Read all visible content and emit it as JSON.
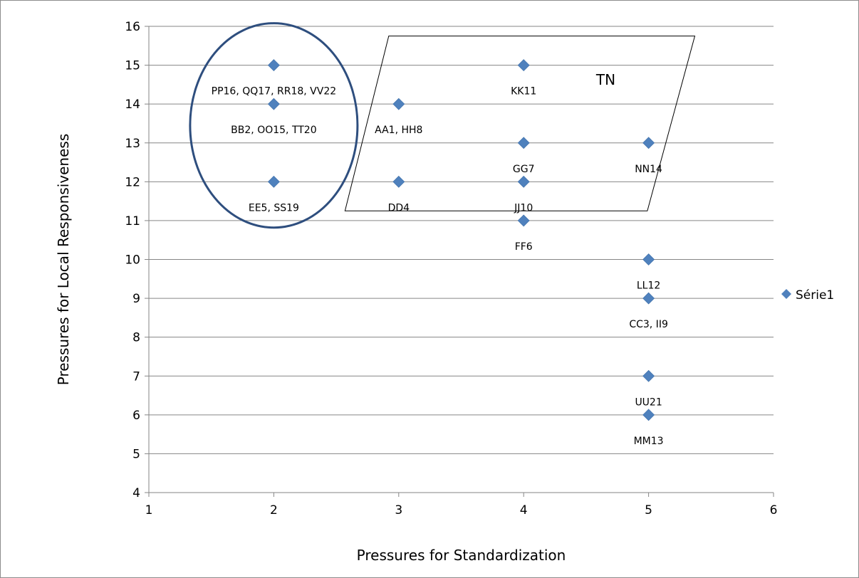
{
  "chart_data": {
    "type": "scatter",
    "title": "",
    "xlabel": "Pressures for Standardization",
    "ylabel": "Pressures for Local Responsiveness",
    "xlim": [
      1,
      6
    ],
    "ylim": [
      4,
      16
    ],
    "x_ticks": [
      "1",
      "2",
      "3",
      "4",
      "5",
      "6"
    ],
    "y_ticks": [
      "4",
      "5",
      "6",
      "7",
      "8",
      "9",
      "10",
      "11",
      "12",
      "13",
      "14",
      "15",
      "16"
    ],
    "grid": "horizontal",
    "legend_position": "right",
    "series": [
      {
        "name": "Série1",
        "color": "#4f81bd",
        "marker": "diamond",
        "x": [
          2,
          2,
          2,
          3,
          3,
          4,
          4,
          4,
          4,
          5,
          5,
          5,
          5,
          5
        ],
        "y": [
          15,
          14,
          12,
          14,
          12,
          15,
          13,
          12,
          11,
          13,
          10,
          9,
          7,
          6
        ]
      }
    ],
    "point_labels": [
      {
        "x": 2,
        "y": 15,
        "text": "PP16, QQ17, RR18, VV22"
      },
      {
        "x": 2,
        "y": 14,
        "text": "BB2, OO15, TT20"
      },
      {
        "x": 2,
        "y": 12,
        "text": "EE5, SS19"
      },
      {
        "x": 3,
        "y": 14,
        "text": "AA1, HH8"
      },
      {
        "x": 3,
        "y": 12,
        "text": "DD4"
      },
      {
        "x": 4,
        "y": 15,
        "text": "KK11"
      },
      {
        "x": 4,
        "y": 13,
        "text": "GG7"
      },
      {
        "x": 4,
        "y": 12,
        "text": "JJ10"
      },
      {
        "x": 4,
        "y": 11,
        "text": "FF6"
      },
      {
        "x": 5,
        "y": 13,
        "text": "NN14"
      },
      {
        "x": 5,
        "y": 10,
        "text": "LL12"
      },
      {
        "x": 5,
        "y": 9,
        "text": "CC3, II9"
      },
      {
        "x": 5,
        "y": 7,
        "text": "UU21"
      },
      {
        "x": 5,
        "y": 6,
        "text": "MM13"
      }
    ],
    "annotations": [
      {
        "shape": "ellipse",
        "center": [
          2,
          13.45
        ],
        "x_radius": 0.67,
        "y_radius": 2.63,
        "color": "#2e4e7e"
      },
      {
        "shape": "parallelogram",
        "corners": [
          [
            2.92,
            15.75
          ],
          [
            5.37,
            15.75
          ],
          [
            4.99,
            11.25
          ],
          [
            2.57,
            11.25
          ]
        ],
        "label": "TN",
        "label_at": [
          4.58,
          14.5
        ]
      }
    ]
  }
}
